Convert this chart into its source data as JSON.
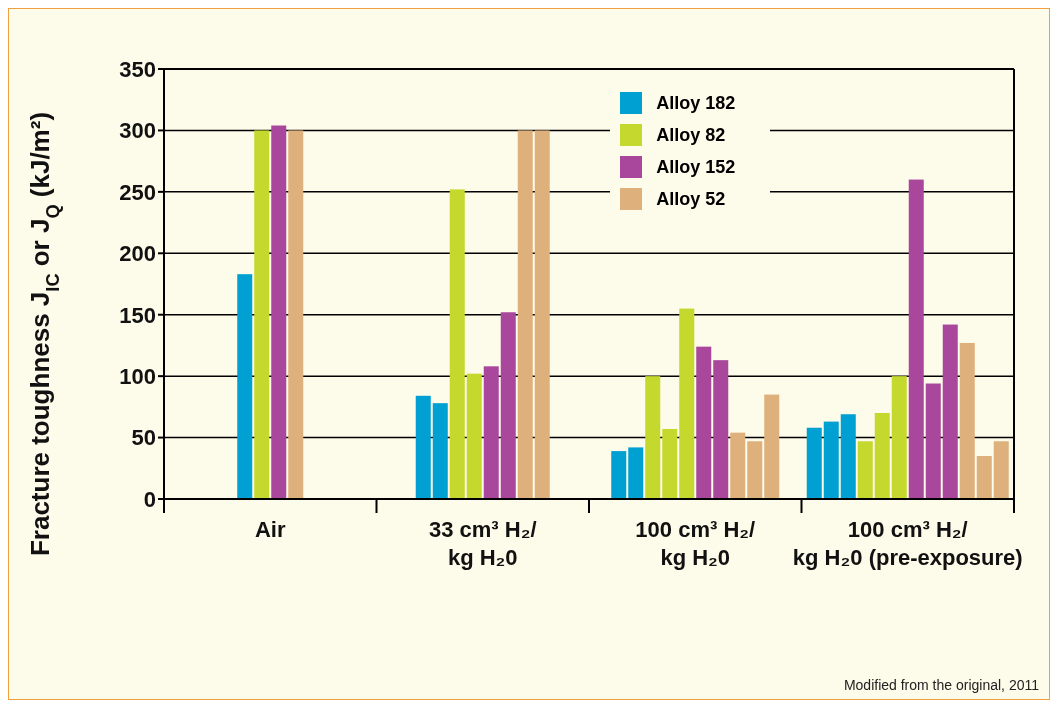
{
  "chart_data": {
    "type": "bar",
    "ylabel": "Fracture toughness J$_{IC}$ or J$_{Q}$ (kJ/m²)",
    "categories": [
      "Air",
      "33 cm³ H₂/\nkg H₂0",
      "100 cm³ H₂/\nkg H₂0",
      "100 cm³ H₂/\nkg H₂0 (pre-exposure)"
    ],
    "series": [
      {
        "name": "Alloy 182",
        "color": "#00a0d2",
        "values": [
          183,
          84,
          39,
          58
        ]
      },
      {
        "color": "#00a0d2",
        "values": [
          null,
          78,
          42,
          63
        ]
      },
      {
        "color": "#00a0d2",
        "values": [
          null,
          null,
          null,
          69
        ]
      },
      {
        "name": "Alloy 82",
        "color": "#c4d82e",
        "values": [
          300,
          252,
          100,
          47
        ]
      },
      {
        "color": "#c4d82e",
        "values": [
          null,
          102,
          57,
          70
        ]
      },
      {
        "color": "#c4d82e",
        "values": [
          null,
          null,
          155,
          100
        ]
      },
      {
        "name": "Alloy 152",
        "color": "#a8479b",
        "values": [
          304,
          108,
          124,
          260
        ]
      },
      {
        "color": "#a8479b",
        "values": [
          null,
          152,
          113,
          94
        ]
      },
      {
        "color": "#a8479b",
        "values": [
          null,
          null,
          null,
          142
        ]
      },
      {
        "name": "Alloy 52",
        "color": "#deb07c",
        "values": [
          300,
          300,
          54,
          127
        ]
      },
      {
        "color": "#deb07c",
        "values": [
          null,
          300,
          47,
          35
        ]
      },
      {
        "color": "#deb07c",
        "values": [
          null,
          null,
          85,
          47
        ]
      }
    ],
    "ylim": [
      0,
      350
    ],
    "yticks": [
      0,
      50,
      100,
      150,
      200,
      250,
      300,
      350
    ],
    "grid": "y",
    "legend": "top right",
    "annotations": [
      "Modified from the original, 2011"
    ]
  }
}
